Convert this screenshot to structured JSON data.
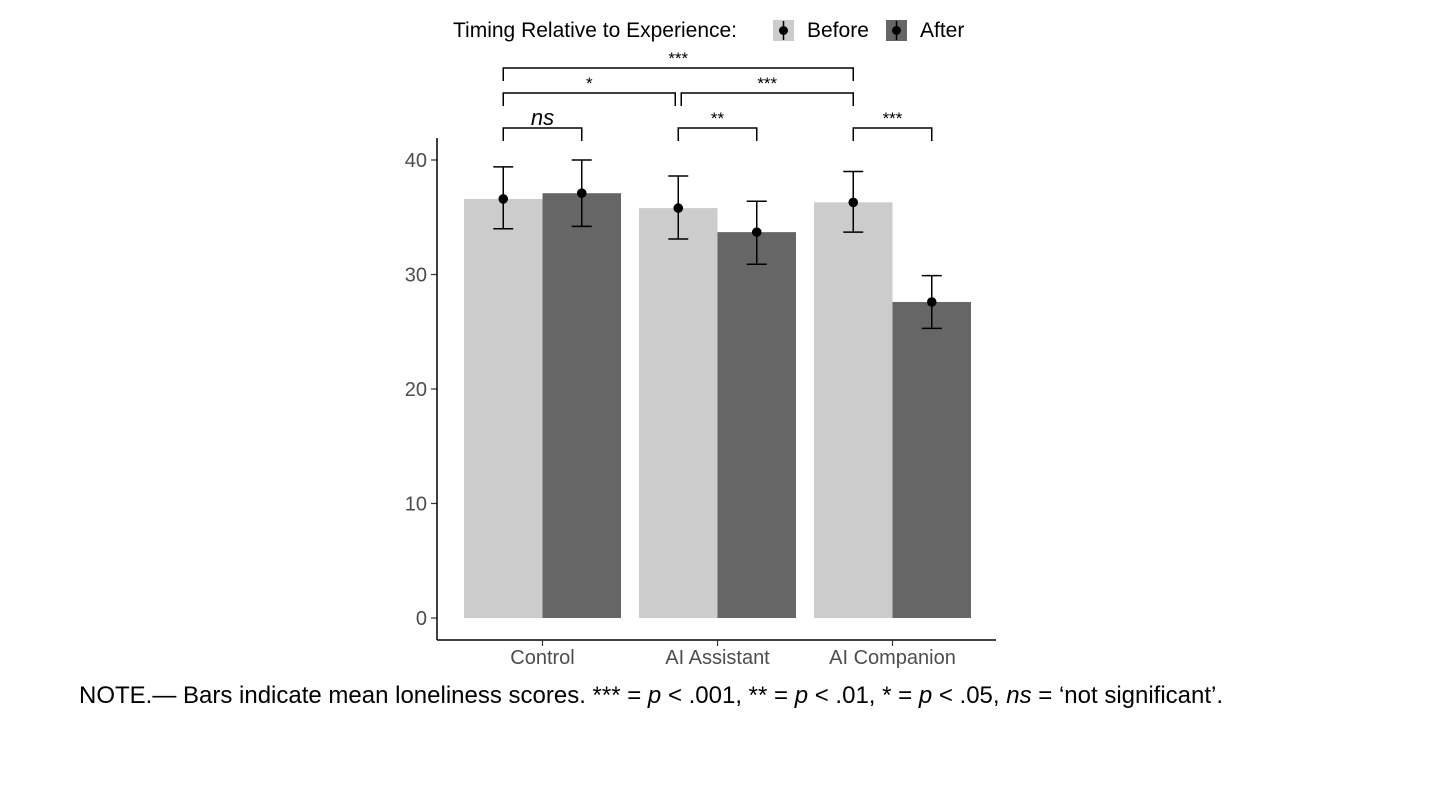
{
  "chart_data": {
    "type": "bar",
    "title": "",
    "xlabel": "",
    "ylabel": "",
    "ylim": [
      0,
      40
    ],
    "yticks": [
      0,
      10,
      20,
      30,
      40
    ],
    "categories": [
      "Control",
      "AI Assistant",
      "AI Companion"
    ],
    "legend": {
      "title": "Timing Relative to Experience:",
      "position": "top",
      "entries": [
        "Before",
        "After"
      ]
    },
    "series": [
      {
        "name": "Before",
        "color": "#cccccc",
        "values": [
          36.6,
          35.8,
          36.3
        ],
        "error_low": [
          34.0,
          33.1,
          33.7
        ],
        "error_high": [
          39.4,
          38.6,
          39.0
        ]
      },
      {
        "name": "After",
        "color": "#666666",
        "values": [
          37.1,
          33.7,
          27.6
        ],
        "error_low": [
          34.2,
          30.9,
          25.3
        ],
        "error_high": [
          40.0,
          36.4,
          29.9
        ]
      }
    ],
    "significance": [
      {
        "label": "ns",
        "italic": true,
        "from": "Control|Before",
        "to": "Control|After"
      },
      {
        "label": "**",
        "from": "AI Assistant|Before",
        "to": "AI Assistant|After"
      },
      {
        "label": "***",
        "from": "AI Companion|Before",
        "to": "AI Companion|After"
      },
      {
        "label": "*",
        "from": "Control|Before",
        "to": "AI Assistant|Before"
      },
      {
        "label": "***",
        "from": "AI Assistant|Before",
        "to": "AI Companion|Before"
      },
      {
        "label": "***",
        "from": "Control|Before",
        "to": "AI Companion|Before"
      }
    ]
  },
  "note": {
    "lead": "NOTE.— Bars indicate mean loneliness scores. *** = ",
    "p": "p",
    "t1": " < .001, ** = ",
    "t2": " < .01, * = ",
    "t3": " < .05, ",
    "ns": "ns",
    "t4": " = ‘not significant’."
  }
}
